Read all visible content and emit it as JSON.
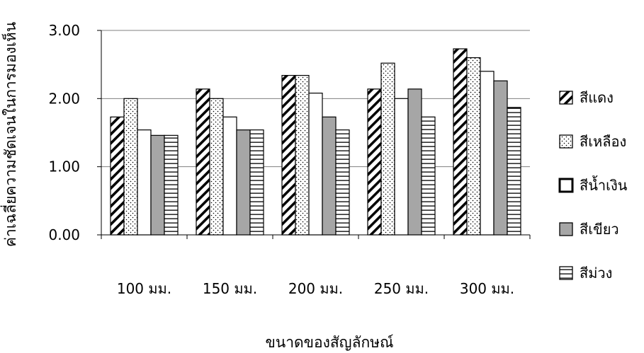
{
  "chart_data": {
    "type": "bar",
    "title": "",
    "xlabel": "ขนาดของสัญลักษณ์",
    "ylabel": "ค่าเฉลี่ยความชัดเจนในการมองเห็น",
    "categories": [
      "100 มม.",
      "150 มม.",
      "200 มม.",
      "250 มม.",
      "300 มม."
    ],
    "ylim": [
      0,
      3
    ],
    "yticks": [
      "0.00",
      "1.00",
      "2.00",
      "3.00"
    ],
    "ytick_values": [
      0,
      1,
      2,
      3
    ],
    "grid": true,
    "legend_position": "right",
    "series": [
      {
        "name": "สีแดง",
        "pattern": "diagonal-hatch",
        "values": [
          1.73,
          2.14,
          2.34,
          2.14,
          2.73
        ]
      },
      {
        "name": "สีเหลือง",
        "pattern": "dots",
        "values": [
          2.0,
          2.0,
          2.34,
          2.52,
          2.6
        ]
      },
      {
        "name": "สีน้ำเงิน",
        "pattern": "white",
        "values": [
          1.54,
          1.73,
          2.08,
          2.0,
          2.4
        ]
      },
      {
        "name": "สีเขียว",
        "pattern": "gray",
        "values": [
          1.46,
          1.54,
          1.73,
          2.14,
          2.26
        ]
      },
      {
        "name": "สีม่วง",
        "pattern": "horizontal-stripes",
        "values": [
          1.46,
          1.54,
          1.54,
          1.73,
          1.87
        ]
      }
    ],
    "colors": {
      "gray_fill": "#a6a6a6",
      "grid": "#808080",
      "axis": "#000000"
    }
  }
}
